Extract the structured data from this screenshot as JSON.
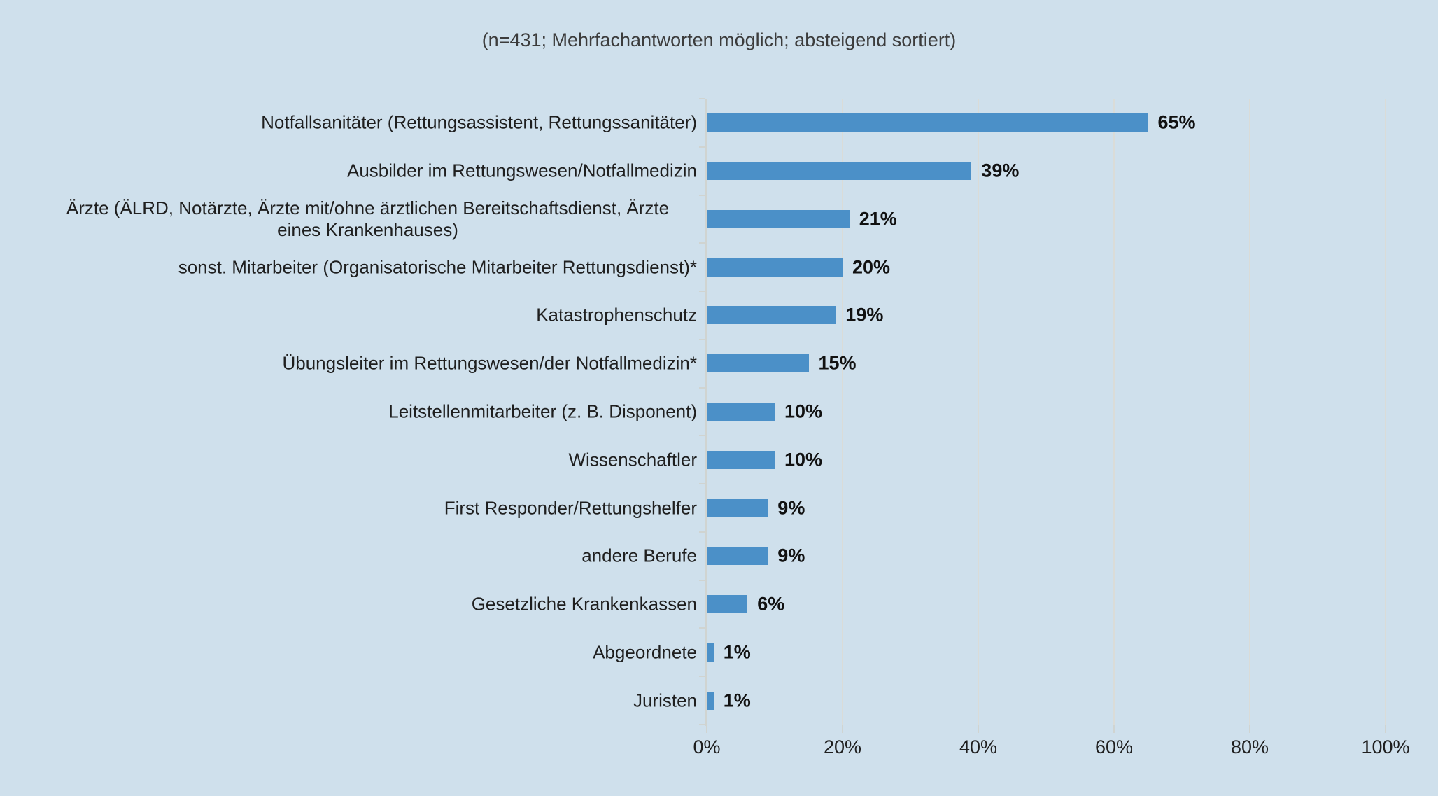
{
  "colors": {
    "background": "#cfe0ec",
    "bar": "#4b90c8",
    "gridline": "#dadcd8",
    "axis": "#d0d4d1",
    "label_text": "#1f1f1f",
    "value_text": "#111111",
    "title_text": "#3c3c3c",
    "tick_text": "#1f1f1f"
  },
  "chart_data": {
    "type": "bar",
    "orientation": "horizontal",
    "title": "(n=431; Mehrfachantworten möglich; absteigend sortiert)",
    "categories": [
      "Notfallsanitäter (Rettungsassistent, Rettungssanitäter)",
      "Ausbilder im Rettungswesen/Notfallmedizin",
      "Ärzte (ÄLRD, Notärzte, Ärzte mit/ohne ärztlichen Bereitschaftsdienst, Ärzte eines Krankenhauses)",
      "sonst. Mitarbeiter (Organisatorische Mitarbeiter Rettungsdienst)*",
      "Katastrophenschutz",
      "Übungsleiter im Rettungswesen/der Notfallmedizin*",
      "Leitstellenmitarbeiter (z. B. Disponent)",
      "Wissenschaftler",
      "First Responder/Rettungshelfer",
      "andere Berufe",
      "Gesetzliche Krankenkassen",
      "Abgeordnete",
      "Juristen"
    ],
    "multiline_categories": {
      "2": [
        "Ärzte (ÄLRD, Notärzte, Ärzte mit/ohne ärztlichen Bereitschaftsdienst, Ärzte",
        "eines Krankenhauses)"
      ]
    },
    "values": [
      65,
      39,
      21,
      20,
      19,
      15,
      10,
      10,
      9,
      9,
      6,
      1,
      1
    ],
    "value_labels": [
      "65%",
      "39%",
      "21%",
      "20%",
      "19%",
      "15%",
      "10%",
      "10%",
      "9%",
      "9%",
      "6%",
      "1%",
      "1%"
    ],
    "x_ticks": [
      "0%",
      "20%",
      "40%",
      "60%",
      "80%",
      "100%"
    ],
    "x_tick_values": [
      0,
      20,
      40,
      60,
      80,
      100
    ],
    "xlim": [
      0,
      100
    ],
    "xlabel": "",
    "ylabel": "",
    "grid": "vertical",
    "legend": "none"
  }
}
